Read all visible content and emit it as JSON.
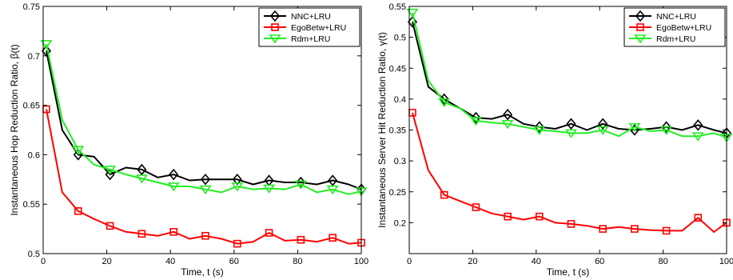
{
  "chart_data": [
    {
      "type": "line",
      "title": "",
      "xlabel": "Time, t (s)",
      "ylabel": "Instantaneous Hop Reduction Ratio,  β(t)",
      "xlim": [
        0,
        100
      ],
      "ylim": [
        0.5,
        0.75
      ],
      "xticks": [
        0,
        20,
        40,
        60,
        80,
        100
      ],
      "yticks": [
        0.5,
        0.55,
        0.6,
        0.65,
        0.7,
        0.75
      ],
      "xtick_labels": [
        "0",
        "20",
        "40",
        "60",
        "80",
        "100"
      ],
      "ytick_labels": [
        "0.5",
        "0.55",
        "0.6",
        "0.65",
        "0.7",
        "0.75"
      ],
      "grid": false,
      "legend_position": "top-right",
      "x": [
        1,
        6,
        11,
        16,
        21,
        26,
        31,
        36,
        41,
        46,
        51,
        56,
        61,
        66,
        71,
        76,
        81,
        86,
        91,
        96,
        100
      ],
      "series": [
        {
          "name": "NNC+LRU",
          "color": "#000000",
          "marker": "diamond",
          "values": [
            0.705,
            0.625,
            0.6,
            0.598,
            0.58,
            0.587,
            0.585,
            0.577,
            0.58,
            0.574,
            0.575,
            0.575,
            0.575,
            0.57,
            0.574,
            0.572,
            0.572,
            0.57,
            0.574,
            0.57,
            0.565
          ]
        },
        {
          "name": "EgoBetw+LRU",
          "color": "#ff0000",
          "marker": "square",
          "values": [
            0.646,
            0.562,
            0.543,
            0.535,
            0.528,
            0.522,
            0.52,
            0.518,
            0.522,
            0.515,
            0.518,
            0.515,
            0.51,
            0.512,
            0.521,
            0.513,
            0.514,
            0.512,
            0.516,
            0.51,
            0.511
          ]
        },
        {
          "name": "Rdm+LRU",
          "color": "#22ee22",
          "marker": "triangle-down",
          "values": [
            0.712,
            0.635,
            0.605,
            0.59,
            0.585,
            0.58,
            0.576,
            0.572,
            0.568,
            0.568,
            0.565,
            0.562,
            0.568,
            0.565,
            0.566,
            0.565,
            0.57,
            0.562,
            0.565,
            0.56,
            0.563
          ]
        }
      ]
    },
    {
      "type": "line",
      "title": "",
      "xlabel": "Time, t (s)",
      "ylabel": "Instantaneous Server Hit Reduction Ratio,  γ(t)",
      "xlim": [
        0,
        100
      ],
      "ylim": [
        0.15,
        0.55
      ],
      "xticks": [
        0,
        20,
        40,
        60,
        80,
        100
      ],
      "yticks": [
        0.2,
        0.25,
        0.3,
        0.35,
        0.4,
        0.45,
        0.5,
        0.55
      ],
      "xtick_labels": [
        "0",
        "20",
        "40",
        "60",
        "80",
        "100"
      ],
      "ytick_labels": [
        "0.2",
        "0.25",
        "0.3",
        "0.35",
        "0.4",
        "0.45",
        "0.5",
        "0.55"
      ],
      "grid": false,
      "legend_position": "top-right",
      "x": [
        1,
        6,
        11,
        16,
        21,
        26,
        31,
        36,
        41,
        46,
        51,
        56,
        61,
        66,
        71,
        76,
        81,
        86,
        91,
        96,
        100
      ],
      "series": [
        {
          "name": "NNC+LRU",
          "color": "#000000",
          "marker": "diamond",
          "values": [
            0.525,
            0.42,
            0.4,
            0.385,
            0.37,
            0.368,
            0.375,
            0.36,
            0.355,
            0.352,
            0.36,
            0.35,
            0.36,
            0.352,
            0.35,
            0.352,
            0.355,
            0.35,
            0.358,
            0.35,
            0.345
          ]
        },
        {
          "name": "EgoBetw+LRU",
          "color": "#ff0000",
          "marker": "square",
          "values": [
            0.378,
            0.285,
            0.245,
            0.235,
            0.225,
            0.215,
            0.21,
            0.205,
            0.21,
            0.2,
            0.198,
            0.195,
            0.19,
            0.193,
            0.19,
            0.188,
            0.187,
            0.187,
            0.208,
            0.185,
            0.2
          ]
        },
        {
          "name": "Rdm+LRU",
          "color": "#22ee22",
          "marker": "triangle-down",
          "values": [
            0.54,
            0.43,
            0.395,
            0.385,
            0.365,
            0.362,
            0.36,
            0.355,
            0.35,
            0.348,
            0.345,
            0.345,
            0.35,
            0.34,
            0.355,
            0.348,
            0.35,
            0.34,
            0.34,
            0.345,
            0.338
          ]
        }
      ]
    }
  ]
}
